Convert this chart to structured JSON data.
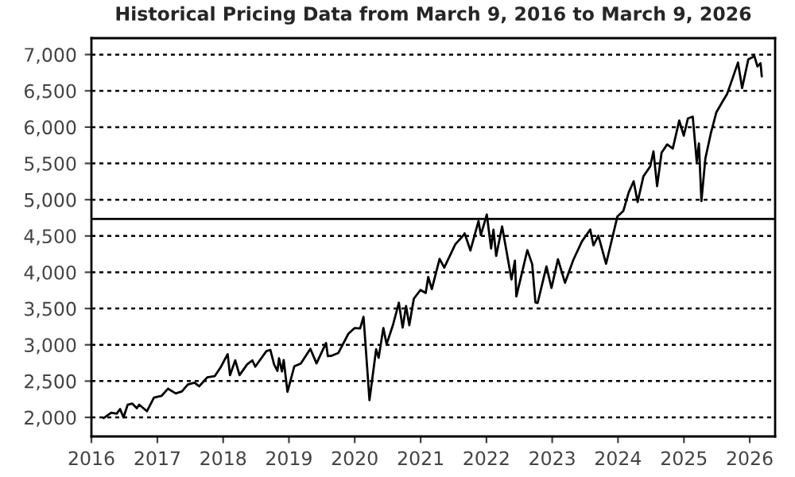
{
  "chart_data": {
    "type": "line",
    "title": "Historical Pricing Data from March 9, 2016 to March 9, 2026",
    "x": [
      "2016-03-09",
      "2016-04-20",
      "2016-05-20",
      "2016-06-08",
      "2016-06-27",
      "2016-07-20",
      "2016-08-15",
      "2016-09-09",
      "2016-09-22",
      "2016-11-04",
      "2016-12-13",
      "2017-01-25",
      "2017-03-01",
      "2017-04-13",
      "2017-05-17",
      "2017-06-19",
      "2017-07-26",
      "2017-08-21",
      "2017-10-05",
      "2017-11-15",
      "2017-12-18",
      "2018-01-26",
      "2018-02-08",
      "2018-03-09",
      "2018-04-02",
      "2018-05-14",
      "2018-06-12",
      "2018-06-28",
      "2018-08-29",
      "2018-09-20",
      "2018-10-11",
      "2018-10-29",
      "2018-11-07",
      "2018-11-23",
      "2018-12-03",
      "2018-12-24",
      "2019-01-31",
      "2019-03-08",
      "2019-04-30",
      "2019-06-03",
      "2019-07-26",
      "2019-08-05",
      "2019-08-23",
      "2019-10-02",
      "2019-11-27",
      "2019-12-31",
      "2020-01-31",
      "2020-02-19",
      "2020-03-23",
      "2020-04-29",
      "2020-05-13",
      "2020-06-08",
      "2020-06-26",
      "2020-07-31",
      "2020-09-02",
      "2020-09-23",
      "2020-10-12",
      "2020-10-30",
      "2020-11-24",
      "2020-12-31",
      "2021-01-29",
      "2021-02-12",
      "2021-03-04",
      "2021-04-16",
      "2021-05-12",
      "2021-07-12",
      "2021-08-31",
      "2021-09-02",
      "2021-10-04",
      "2021-11-18",
      "2021-12-01",
      "2022-01-03",
      "2022-01-27",
      "2022-02-09",
      "2022-02-24",
      "2022-03-29",
      "2022-05-02",
      "2022-05-20",
      "2022-06-08",
      "2022-06-16",
      "2022-08-16",
      "2022-09-12",
      "2022-09-30",
      "2022-10-12",
      "2022-11-30",
      "2022-12-28",
      "2023-02-02",
      "2023-03-13",
      "2023-04-28",
      "2023-06-15",
      "2023-07-31",
      "2023-08-18",
      "2023-09-14",
      "2023-10-27",
      "2023-12-29",
      "2024-01-31",
      "2024-02-29",
      "2024-03-28",
      "2024-04-19",
      "2024-05-21",
      "2024-06-28",
      "2024-07-16",
      "2024-08-05",
      "2024-08-30",
      "2024-09-30",
      "2024-10-31",
      "2024-12-06",
      "2024-12-31",
      "2025-01-23",
      "2025-02-19",
      "2025-03-13",
      "2025-03-25",
      "2025-04-08",
      "2025-04-30",
      "2025-05-30",
      "2025-06-30",
      "2025-07-31",
      "2025-08-29",
      "2025-09-30",
      "2025-10-28",
      "2025-11-20",
      "2025-12-24",
      "2026-01-27",
      "2026-02-13",
      "2026-03-02",
      "2026-03-09"
    ],
    "series": [
      {
        "color": "#000000",
        "values": [
          1990,
          2065,
          2050,
          2115,
          2000,
          2173,
          2190,
          2127,
          2175,
          2085,
          2272,
          2298,
          2395,
          2330,
          2357,
          2453,
          2477,
          2428,
          2552,
          2567,
          2690,
          2872,
          2581,
          2786,
          2582,
          2730,
          2786,
          2699,
          2914,
          2930,
          2728,
          2641,
          2814,
          2633,
          2790,
          2351,
          2704,
          2743,
          2945,
          2744,
          3025,
          2844,
          2847,
          2887,
          3153,
          3230,
          3225,
          3386,
          2237,
          2939,
          2820,
          3232,
          3009,
          3271,
          3580,
          3237,
          3534,
          3270,
          3635,
          3756,
          3714,
          3934,
          3768,
          4185,
          4063,
          4384,
          4523,
          4537,
          4300,
          4705,
          4513,
          4796,
          4326,
          4587,
          4225,
          4631,
          4155,
          3901,
          4160,
          3666,
          4305,
          4110,
          3585,
          3577,
          4080,
          3783,
          4179,
          3855,
          4169,
          4425,
          4589,
          4370,
          4505,
          4117,
          4770,
          4846,
          5096,
          5254,
          4967,
          5321,
          5460,
          5667,
          5186,
          5648,
          5762,
          5705,
          6090,
          5882,
          6119,
          6144,
          5521,
          5776,
          4982,
          5569,
          5912,
          6205,
          6339,
          6460,
          6688,
          6890,
          6538,
          6932,
          6978,
          6836,
          6881,
          6700
        ]
      }
    ],
    "xlim": [
      "2016-01-01",
      "2026-05-22"
    ],
    "xticks": [
      "2016",
      "2017",
      "2018",
      "2019",
      "2020",
      "2021",
      "2022",
      "2023",
      "2024",
      "2025",
      "2026"
    ],
    "ylim": [
      1737,
      7226
    ],
    "yticks": [
      {
        "value": 2000,
        "label": "2,000"
      },
      {
        "value": 2500,
        "label": "2,500"
      },
      {
        "value": 3000,
        "label": "3,000"
      },
      {
        "value": 3500,
        "label": "3,500"
      },
      {
        "value": 4000,
        "label": "4,000"
      },
      {
        "value": 4500,
        "label": "4,500"
      },
      {
        "value": 5000,
        "label": "5,000"
      },
      {
        "value": 5500,
        "label": "5,500"
      },
      {
        "value": 6000,
        "label": "6,000"
      },
      {
        "value": 6500,
        "label": "6,500"
      },
      {
        "value": 7000,
        "label": "7,000"
      }
    ],
    "grid": "y",
    "ref_lines": [
      {
        "axis": "y",
        "value": 4734,
        "color": "#000000",
        "line_style": "solid"
      }
    ],
    "line_style": "solid",
    "marker": "none"
  }
}
